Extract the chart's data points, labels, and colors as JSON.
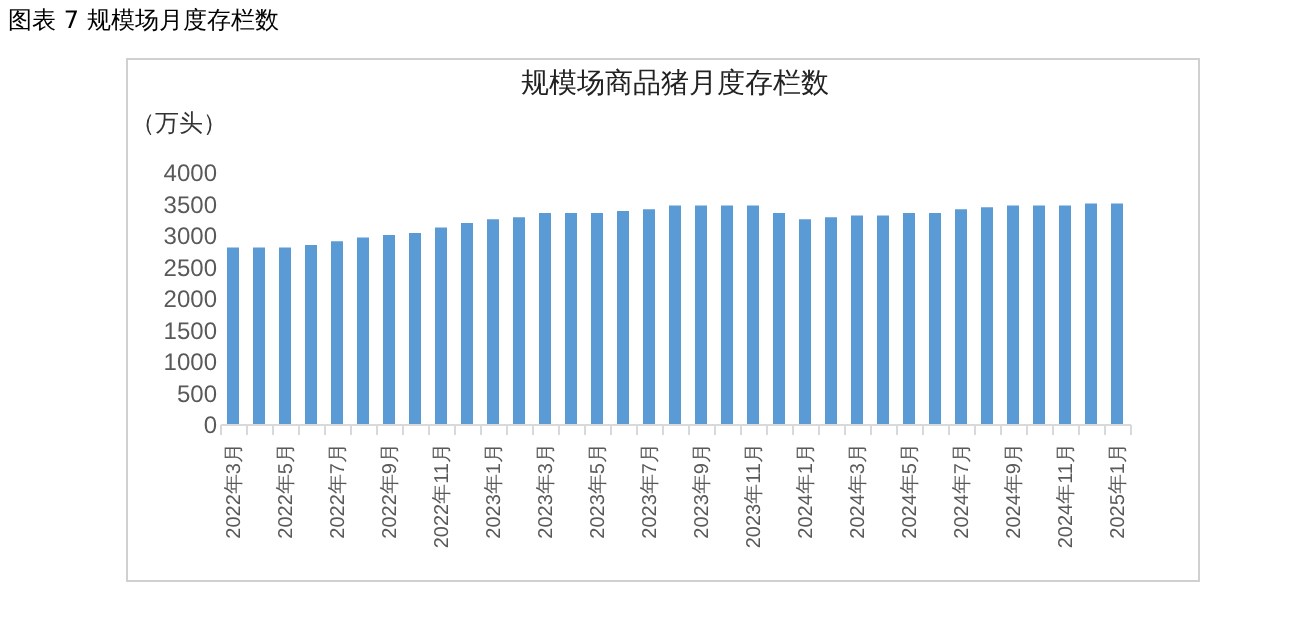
{
  "chart_data": {
    "type": "bar",
    "title": "规模场商品猪月度存栏数",
    "ylabel": "（万头）",
    "annotations": [
      "图表 7  规模场月度存栏数"
    ],
    "categories": [
      "2022年3月",
      null,
      "2022年5月",
      null,
      "2022年7月",
      null,
      "2022年9月",
      null,
      "2022年11月",
      null,
      "2023年1月",
      null,
      "2023年3月",
      null,
      "2023年5月",
      null,
      "2023年7月",
      null,
      "2023年9月",
      null,
      "2023年11月",
      null,
      "2024年1月",
      null,
      "2024年3月",
      null,
      "2024年5月",
      null,
      "2024年7月",
      null,
      "2024年9月",
      null,
      "2024年11月",
      null,
      "2025年1月"
    ],
    "series": [
      {
        "color": "#5b9bd5",
        "values": [
          2800,
          2800,
          2800,
          2840,
          2900,
          2960,
          3000,
          3030,
          3120,
          3190,
          3250,
          3280,
          3350,
          3350,
          3350,
          3380,
          3410,
          3470,
          3470,
          3470,
          3470,
          3350,
          3250,
          3280,
          3310,
          3310,
          3350,
          3350,
          3410,
          3440,
          3470,
          3470,
          3470,
          3500,
          3500
        ]
      }
    ],
    "ylim": [
      0,
      4000
    ],
    "yticks": [
      0,
      500,
      1000,
      1500,
      2000,
      2500,
      3000,
      3500,
      4000
    ],
    "grid": false,
    "legend": false
  }
}
